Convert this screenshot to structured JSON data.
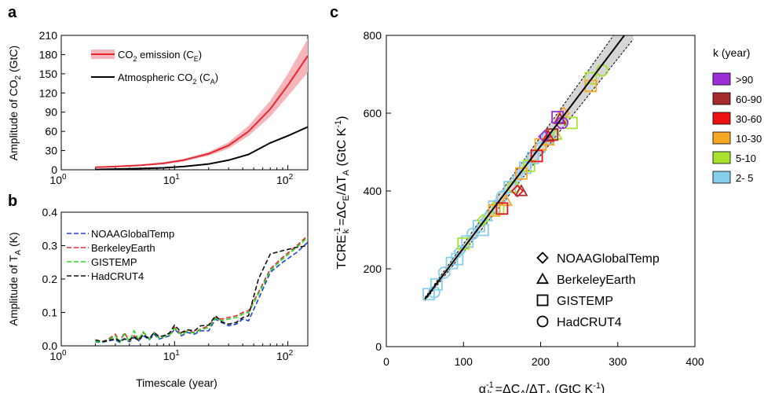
{
  "panels": {
    "a": {
      "label": "a",
      "ylabel": "Amplitude of CO",
      "ylabel_sub": "2",
      "ylabel_tail": " (GtC)",
      "legend": [
        {
          "main": "CO",
          "sub1": "2",
          "mid": " emission (C",
          "sub2": "E",
          "end": ")"
        },
        {
          "main": "Atmospheric CO",
          "sub1": "2",
          "mid": " (C",
          "sub2": "A",
          "end": ")"
        }
      ]
    },
    "b": {
      "label": "b",
      "ylabel": "Amplitude of T",
      "ylabel_sub": "A",
      "ylabel_tail": " (K)",
      "xlabel": "Timescale (year)"
    },
    "c": {
      "label": "c",
      "ylabel": "TCRE",
      "ylabel_sup": "-1",
      "ylabel_sub": "k",
      "ylabel_rest": " =ΔC",
      "ylabel_sub2": "E",
      "ylabel_mid": "/ΔT",
      "ylabel_sub3": "A",
      "ylabel_unit": " (GtC K",
      "ylabel_unit_sup": "-1",
      "ylabel_end": ")",
      "xlabel": "α",
      "xlabel_sup": "-1",
      "xlabel_sub": "k",
      "xlabel_rest": " =ΔC",
      "xlabel_sub2": "A",
      "xlabel_mid": "/ΔT",
      "xlabel_sub3": "A",
      "xlabel_unit": " (GtC K",
      "xlabel_unit_sup": "-1",
      "xlabel_end": ")",
      "marker_legend": [
        "NOAAGlobalTemp",
        "BerkeleyEarth",
        "GISTEMP",
        "HadCRUT4"
      ],
      "k_legend_title": "k (year)",
      "k_legend": [
        {
          "label": ">90",
          "color": "#9b30d9"
        },
        {
          "label": "60-90",
          "color": "#a52a2a"
        },
        {
          "label": "30-60",
          "color": "#ee1111"
        },
        {
          "label": "10-30",
          "color": "#f5a623"
        },
        {
          "label": "5-10",
          "color": "#a6e22e"
        },
        {
          "label": "2- 5",
          "color": "#87ceeb"
        }
      ]
    }
  },
  "chart_data": [
    {
      "type": "line",
      "panel": "a",
      "xscale": "log",
      "xlim": [
        1,
        150
      ],
      "xticks": [
        "10",
        "10",
        "10"
      ],
      "xtick_exp": [
        "0",
        "1",
        "2"
      ],
      "ylim": [
        0,
        210
      ],
      "yticks": [
        "0",
        "30",
        "60",
        "90",
        "120",
        "150",
        "180",
        "210"
      ],
      "series": [
        {
          "name": "CO2 emission (CE)",
          "color": "#e8262f",
          "x": [
            2,
            3,
            5,
            8,
            12,
            20,
            30,
            45,
            70,
            100,
            150
          ],
          "y": [
            4,
            5,
            7,
            10,
            15,
            25,
            38,
            60,
            95,
            132,
            178
          ],
          "band": [
            [
              3,
              5
            ],
            [
              4,
              6
            ],
            [
              6,
              8
            ],
            [
              9,
              12
            ],
            [
              13,
              17
            ],
            [
              22,
              28
            ],
            [
              33,
              43
            ],
            [
              53,
              69
            ],
            [
              83,
              108
            ],
            [
              115,
              150
            ],
            [
              152,
              205
            ]
          ]
        },
        {
          "name": "Atmospheric CO2 (CA)",
          "color": "#000000",
          "x": [
            2,
            3,
            5,
            8,
            12,
            20,
            30,
            45,
            70,
            100,
            150
          ],
          "y": [
            0.5,
            1,
            2,
            3,
            5,
            9,
            15,
            24,
            42,
            53,
            67
          ]
        }
      ]
    },
    {
      "type": "line",
      "panel": "b",
      "xscale": "log",
      "xlim": [
        1,
        150
      ],
      "xticks": [
        "10",
        "10",
        "10"
      ],
      "xtick_exp": [
        "0",
        "1",
        "2"
      ],
      "ylim": [
        0,
        0.4
      ],
      "yticks": [
        "0.0",
        "0.1",
        "0.2",
        "0.3",
        "0.4"
      ],
      "x": [
        2,
        2.3,
        2.6,
        3,
        3.3,
        3.6,
        4,
        4.4,
        4.8,
        5.3,
        6,
        6.6,
        7.3,
        8,
        9,
        10,
        11.5,
        13,
        15,
        17,
        20,
        23,
        26,
        30,
        35,
        40,
        45,
        55,
        70,
        90,
        120,
        150
      ],
      "series": [
        {
          "name": "NOAAGlobalTemp",
          "color": "#1f3fd9",
          "y": [
            0.012,
            0.01,
            0.015,
            0.018,
            0.01,
            0.022,
            0.012,
            0.025,
            0.015,
            0.03,
            0.018,
            0.035,
            0.02,
            0.025,
            0.03,
            0.05,
            0.03,
            0.04,
            0.035,
            0.045,
            0.045,
            0.08,
            0.07,
            0.06,
            0.065,
            0.08,
            0.075,
            0.14,
            0.22,
            0.25,
            0.28,
            0.31
          ]
        },
        {
          "name": "BerkeleyEarth",
          "color": "#e8262f",
          "y": [
            0.015,
            0.012,
            0.02,
            0.035,
            0.012,
            0.04,
            0.015,
            0.03,
            0.02,
            0.04,
            0.02,
            0.04,
            0.025,
            0.03,
            0.035,
            0.055,
            0.035,
            0.045,
            0.04,
            0.05,
            0.06,
            0.085,
            0.08,
            0.085,
            0.09,
            0.1,
            0.105,
            0.16,
            0.23,
            0.265,
            0.3,
            0.33
          ]
        },
        {
          "name": "GISTEMP",
          "color": "#22dd22",
          "y": [
            0.014,
            0.011,
            0.018,
            0.03,
            0.011,
            0.035,
            0.014,
            0.045,
            0.018,
            0.042,
            0.019,
            0.038,
            0.022,
            0.028,
            0.032,
            0.052,
            0.033,
            0.043,
            0.038,
            0.048,
            0.055,
            0.082,
            0.075,
            0.08,
            0.085,
            0.095,
            0.1,
            0.155,
            0.225,
            0.26,
            0.295,
            0.325
          ]
        },
        {
          "name": "HadCRUT4",
          "color": "#111111",
          "y": [
            0.018,
            0.013,
            0.016,
            0.022,
            0.014,
            0.02,
            0.018,
            0.028,
            0.016,
            0.033,
            0.022,
            0.04,
            0.028,
            0.03,
            0.038,
            0.062,
            0.04,
            0.048,
            0.045,
            0.06,
            0.062,
            0.09,
            0.072,
            0.065,
            0.07,
            0.085,
            0.09,
            0.2,
            0.275,
            0.285,
            0.295,
            0.3
          ]
        }
      ]
    },
    {
      "type": "scatter",
      "panel": "c",
      "xlim": [
        0,
        400
      ],
      "ylim": [
        0,
        800
      ],
      "xticks": [
        "0",
        "100",
        "200",
        "300",
        "400"
      ],
      "yticks": [
        "0",
        "200",
        "400",
        "600",
        "800"
      ],
      "fit_line": {
        "x": [
          50,
          320
        ],
        "y": [
          122,
          830
        ]
      },
      "points": [
        {
          "k": "2- 5",
          "x": 55,
          "y": 135,
          "m": "square"
        },
        {
          "k": "2- 5",
          "x": 65,
          "y": 160,
          "m": "square"
        },
        {
          "k": "2- 5",
          "x": 75,
          "y": 190,
          "m": "circle"
        },
        {
          "k": "2- 5",
          "x": 85,
          "y": 215,
          "m": "square"
        },
        {
          "k": "2- 5",
          "x": 95,
          "y": 245,
          "m": "diamond"
        },
        {
          "k": "2- 5",
          "x": 105,
          "y": 270,
          "m": "square"
        },
        {
          "k": "2- 5",
          "x": 112,
          "y": 290,
          "m": "circle"
        },
        {
          "k": "2- 5",
          "x": 120,
          "y": 310,
          "m": "square"
        },
        {
          "k": "2- 5",
          "x": 130,
          "y": 335,
          "m": "triangle"
        },
        {
          "k": "2- 5",
          "x": 140,
          "y": 360,
          "m": "square"
        },
        {
          "k": "2- 5",
          "x": 150,
          "y": 385,
          "m": "circle"
        },
        {
          "k": "2- 5",
          "x": 160,
          "y": 410,
          "m": "square"
        },
        {
          "k": "2- 5",
          "x": 170,
          "y": 435,
          "m": "diamond"
        },
        {
          "k": "2- 5",
          "x": 180,
          "y": 460,
          "m": "square"
        },
        {
          "k": "2- 5",
          "x": 190,
          "y": 485,
          "m": "square"
        },
        {
          "k": "2- 5",
          "x": 200,
          "y": 510,
          "m": "circle"
        },
        {
          "k": "2- 5",
          "x": 210,
          "y": 535,
          "m": "square"
        },
        {
          "k": "2- 5",
          "x": 62,
          "y": 140,
          "m": "circle"
        },
        {
          "k": "2- 5",
          "x": 92,
          "y": 225,
          "m": "square"
        },
        {
          "k": "2- 5",
          "x": 125,
          "y": 300,
          "m": "square"
        },
        {
          "k": "5-10",
          "x": 100,
          "y": 265,
          "m": "square"
        },
        {
          "k": "5-10",
          "x": 125,
          "y": 325,
          "m": "diamond"
        },
        {
          "k": "5-10",
          "x": 145,
          "y": 355,
          "m": "square"
        },
        {
          "k": "5-10",
          "x": 165,
          "y": 410,
          "m": "circle"
        },
        {
          "k": "5-10",
          "x": 185,
          "y": 465,
          "m": "square"
        },
        {
          "k": "5-10",
          "x": 220,
          "y": 545,
          "m": "triangle"
        },
        {
          "k": "5-10",
          "x": 240,
          "y": 575,
          "m": "square"
        },
        {
          "k": "5-10",
          "x": 265,
          "y": 690,
          "m": "square"
        },
        {
          "k": "5-10",
          "x": 280,
          "y": 710,
          "m": "circle"
        },
        {
          "k": "10-30",
          "x": 140,
          "y": 350,
          "m": "square"
        },
        {
          "k": "10-30",
          "x": 155,
          "y": 375,
          "m": "triangle"
        },
        {
          "k": "10-30",
          "x": 175,
          "y": 445,
          "m": "square"
        },
        {
          "k": "10-30",
          "x": 200,
          "y": 520,
          "m": "square"
        },
        {
          "k": "10-30",
          "x": 210,
          "y": 530,
          "m": "triangle"
        },
        {
          "k": "10-30",
          "x": 230,
          "y": 600,
          "m": "diamond"
        },
        {
          "k": "10-30",
          "x": 265,
          "y": 670,
          "m": "square"
        },
        {
          "k": "30-60",
          "x": 150,
          "y": 355,
          "m": "square"
        },
        {
          "k": "30-60",
          "x": 170,
          "y": 400,
          "m": "diamond"
        },
        {
          "k": "30-60",
          "x": 195,
          "y": 490,
          "m": "square"
        },
        {
          "k": "30-60",
          "x": 210,
          "y": 540,
          "m": "triangle"
        },
        {
          "k": "60-90",
          "x": 175,
          "y": 400,
          "m": "triangle"
        },
        {
          "k": "60-90",
          "x": 215,
          "y": 545,
          "m": "square"
        },
        {
          "k": "60-90",
          "x": 225,
          "y": 585,
          "m": "triangle"
        },
        {
          "k": ">90",
          "x": 205,
          "y": 540,
          "m": "diamond"
        },
        {
          "k": ">90",
          "x": 222,
          "y": 590,
          "m": "square"
        },
        {
          "k": ">90",
          "x": 228,
          "y": 575,
          "m": "circle"
        }
      ]
    }
  ]
}
